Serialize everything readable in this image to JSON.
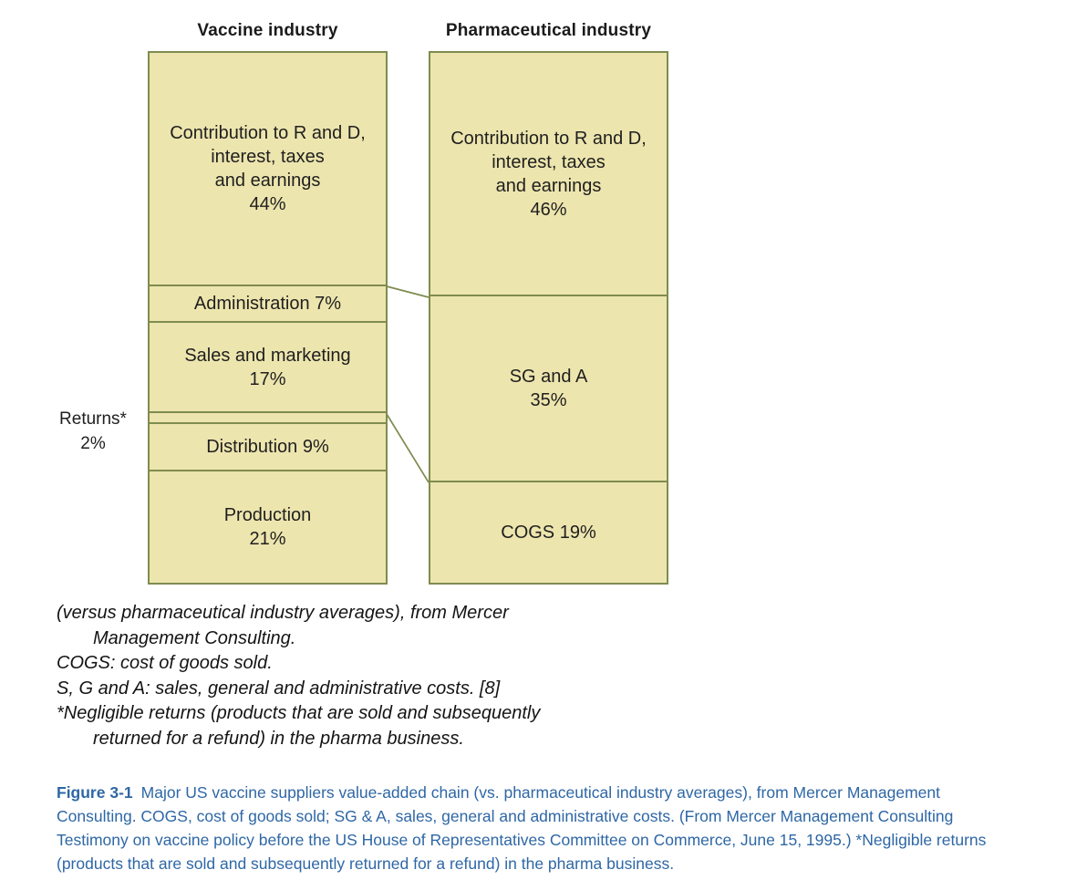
{
  "chart_data": {
    "type": "stacked_bar",
    "unit": "%",
    "title": "",
    "columns": [
      {
        "title": "Vaccine industry",
        "segments": [
          {
            "name": "Contribution to R and D, interest, taxes and earnings",
            "value": 44,
            "label_lines": [
              "Contribution to R and D,",
              "interest, taxes",
              "and earnings",
              "44%"
            ]
          },
          {
            "name": "Administration",
            "value": 7,
            "label_lines": [
              "Administration 7%"
            ]
          },
          {
            "name": "Sales and marketing",
            "value": 17,
            "label_lines": [
              "Sales and marketing",
              "17%"
            ]
          },
          {
            "name": "Returns",
            "value": 2,
            "label_lines": []
          },
          {
            "name": "Distribution",
            "value": 9,
            "label_lines": [
              "Distribution 9%"
            ]
          },
          {
            "name": "Production",
            "value": 21,
            "label_lines": [
              "Production",
              "21%"
            ]
          }
        ]
      },
      {
        "title": "Pharmaceutical industry",
        "segments": [
          {
            "name": "Contribution to R and D, interest, taxes and earnings",
            "value": 46,
            "label_lines": [
              "Contribution to R and D,",
              "interest, taxes",
              "and earnings",
              "46%"
            ]
          },
          {
            "name": "SG and A",
            "value": 35,
            "label_lines": [
              "SG and A",
              "35%"
            ]
          },
          {
            "name": "COGS",
            "value": 19,
            "label_lines": [
              "COGS 19%"
            ]
          }
        ]
      }
    ],
    "external_label": {
      "line1": "Returns*",
      "line2": "2%"
    },
    "colors": {
      "segment_fill": "#EDE5AE",
      "segment_border": "#7E8C4F",
      "connector_line": "#7E8C4F",
      "caption_blue": "#2E67A5",
      "text": "#1F1F1F"
    },
    "layout_hints": {
      "columns_side_by_side": true,
      "connectors": "bottom of top segment and SG&A/COGS boundary linked between columns"
    }
  },
  "notes": {
    "lines": [
      {
        "text": "(versus pharmaceutical industry averages), from Mercer",
        "indent": false
      },
      {
        "text": "Management Consulting.",
        "indent": true
      },
      {
        "text": "COGS: cost of goods sold.",
        "indent": false
      },
      {
        "text": "S, G and A: sales, general and administrative costs. [8]",
        "indent": false
      },
      {
        "text": "*Negligible returns (products that are sold and subsequently",
        "indent": false
      },
      {
        "text": "returned for a refund) in the pharma business.",
        "indent": true
      }
    ]
  },
  "caption": {
    "label": "Figure 3-1",
    "lines": [
      "Major US vaccine suppliers value-added chain (vs. pharmaceutical industry averages), from Mercer Management",
      "Consulting. COGS, cost of goods sold; SG & A, sales, general and administrative costs. (From Mercer Management Consulting",
      "Testimony on vaccine policy before the US House of Representatives Committee on Commerce, June 15, 1995.) *Negligible returns",
      "(products that are sold and subsequently returned for a refund) in the pharma business."
    ]
  }
}
